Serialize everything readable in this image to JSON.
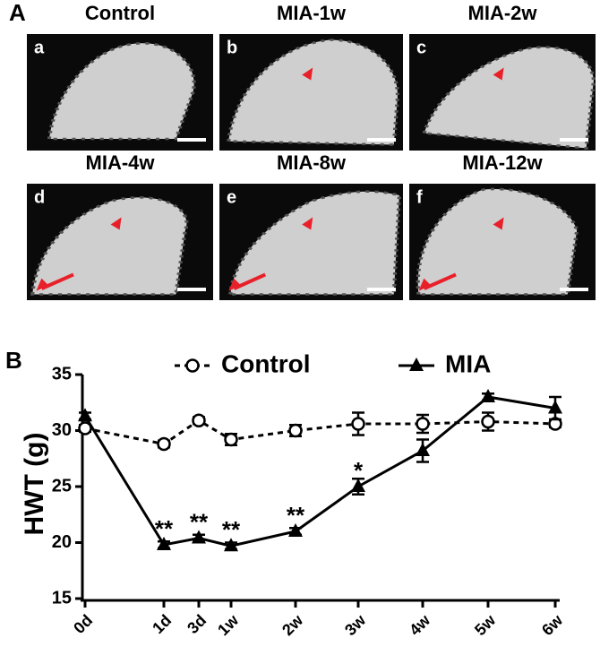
{
  "panel_labels": [
    "A",
    "B"
  ],
  "images": [
    {
      "title": "Control",
      "label": "a"
    },
    {
      "title": "MIA-1w",
      "label": "b"
    },
    {
      "title": "MIA-2w",
      "label": "c"
    },
    {
      "title": "MIA-4w",
      "label": "d"
    },
    {
      "title": "MIA-8w",
      "label": "e"
    },
    {
      "title": "MIA-12w",
      "label": "f"
    }
  ],
  "chart_data": {
    "type": "line",
    "y_label": "HWT (g)",
    "categories": [
      "0d",
      "1d",
      "3d",
      "1w",
      "2w",
      "3w",
      "4w",
      "5w",
      "6w"
    ],
    "series": [
      {
        "name": "Control",
        "color": "#000000",
        "line_style": "dashed",
        "marker": "circle-open",
        "values": [
          30.2,
          28.8,
          30.9,
          29.2,
          30.0,
          30.6,
          30.6,
          30.8,
          30.6
        ],
        "errors": [
          0.3,
          0.3,
          0.3,
          0.5,
          0.5,
          1.0,
          0.8,
          0.8,
          0.3
        ]
      },
      {
        "name": "MIA",
        "color": "#000000",
        "line_style": "solid",
        "marker": "triangle",
        "values": [
          31.3,
          19.8,
          20.4,
          19.7,
          21.0,
          25.0,
          28.2,
          33.0,
          32.0
        ],
        "errors": [
          0.3,
          0.3,
          0.3,
          0.3,
          0.3,
          0.7,
          1.0,
          0.3,
          1.0
        ],
        "significance": [
          null,
          "**",
          "**",
          "**",
          "**",
          "*",
          null,
          null,
          null
        ]
      }
    ],
    "ylim": [
      15,
      35
    ],
    "yticks": [
      15,
      20,
      25,
      30,
      35
    ]
  }
}
